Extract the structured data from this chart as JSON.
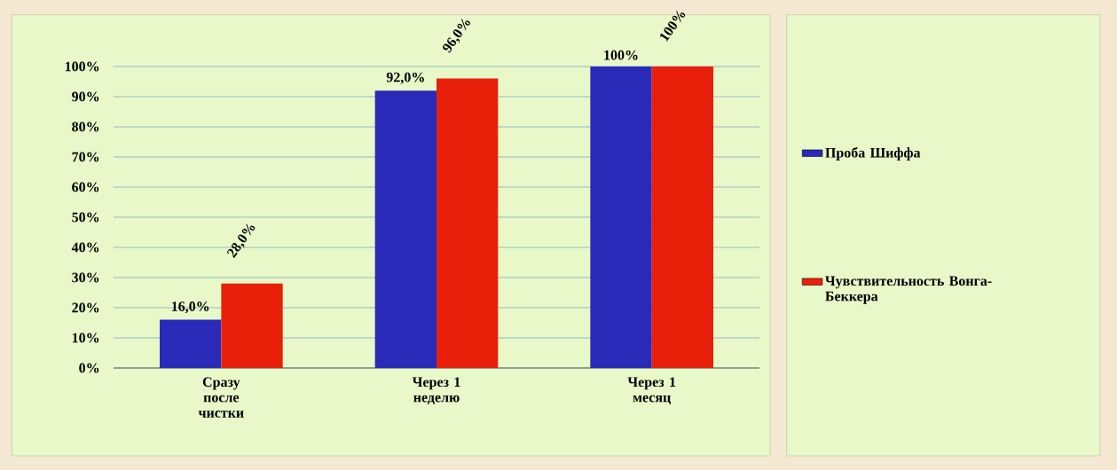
{
  "chart_data": {
    "type": "bar",
    "categories": [
      "Сразу после чистки",
      "Через 1 неделю",
      "Через 1 месяц"
    ],
    "series": [
      {
        "name": "Проба  Шиффа",
        "color": "#2a2ab8",
        "values": [
          16,
          92,
          100
        ],
        "value_labels": [
          "16,0%",
          "92,0%",
          "100%"
        ]
      },
      {
        "name": "Чувствительность Вонга-Беккера",
        "color": "#e8200a",
        "values": [
          28,
          96,
          100
        ],
        "value_labels": [
          "28,0%",
          "96,0%",
          "100%"
        ]
      }
    ],
    "ylim": [
      0,
      100
    ],
    "yticks": [
      {
        "value": 0,
        "label": "0%"
      },
      {
        "value": 10,
        "label": "10%"
      },
      {
        "value": 20,
        "label": "20%"
      },
      {
        "value": 30,
        "label": "30%"
      },
      {
        "value": 40,
        "label": "40%"
      },
      {
        "value": 50,
        "label": "50%"
      },
      {
        "value": 60,
        "label": "60%"
      },
      {
        "value": 70,
        "label": "70%"
      },
      {
        "value": 80,
        "label": "80%"
      },
      {
        "value": 90,
        "label": "90%"
      },
      {
        "value": 100,
        "label": "100%"
      }
    ],
    "grid": "y",
    "legend": "right"
  }
}
